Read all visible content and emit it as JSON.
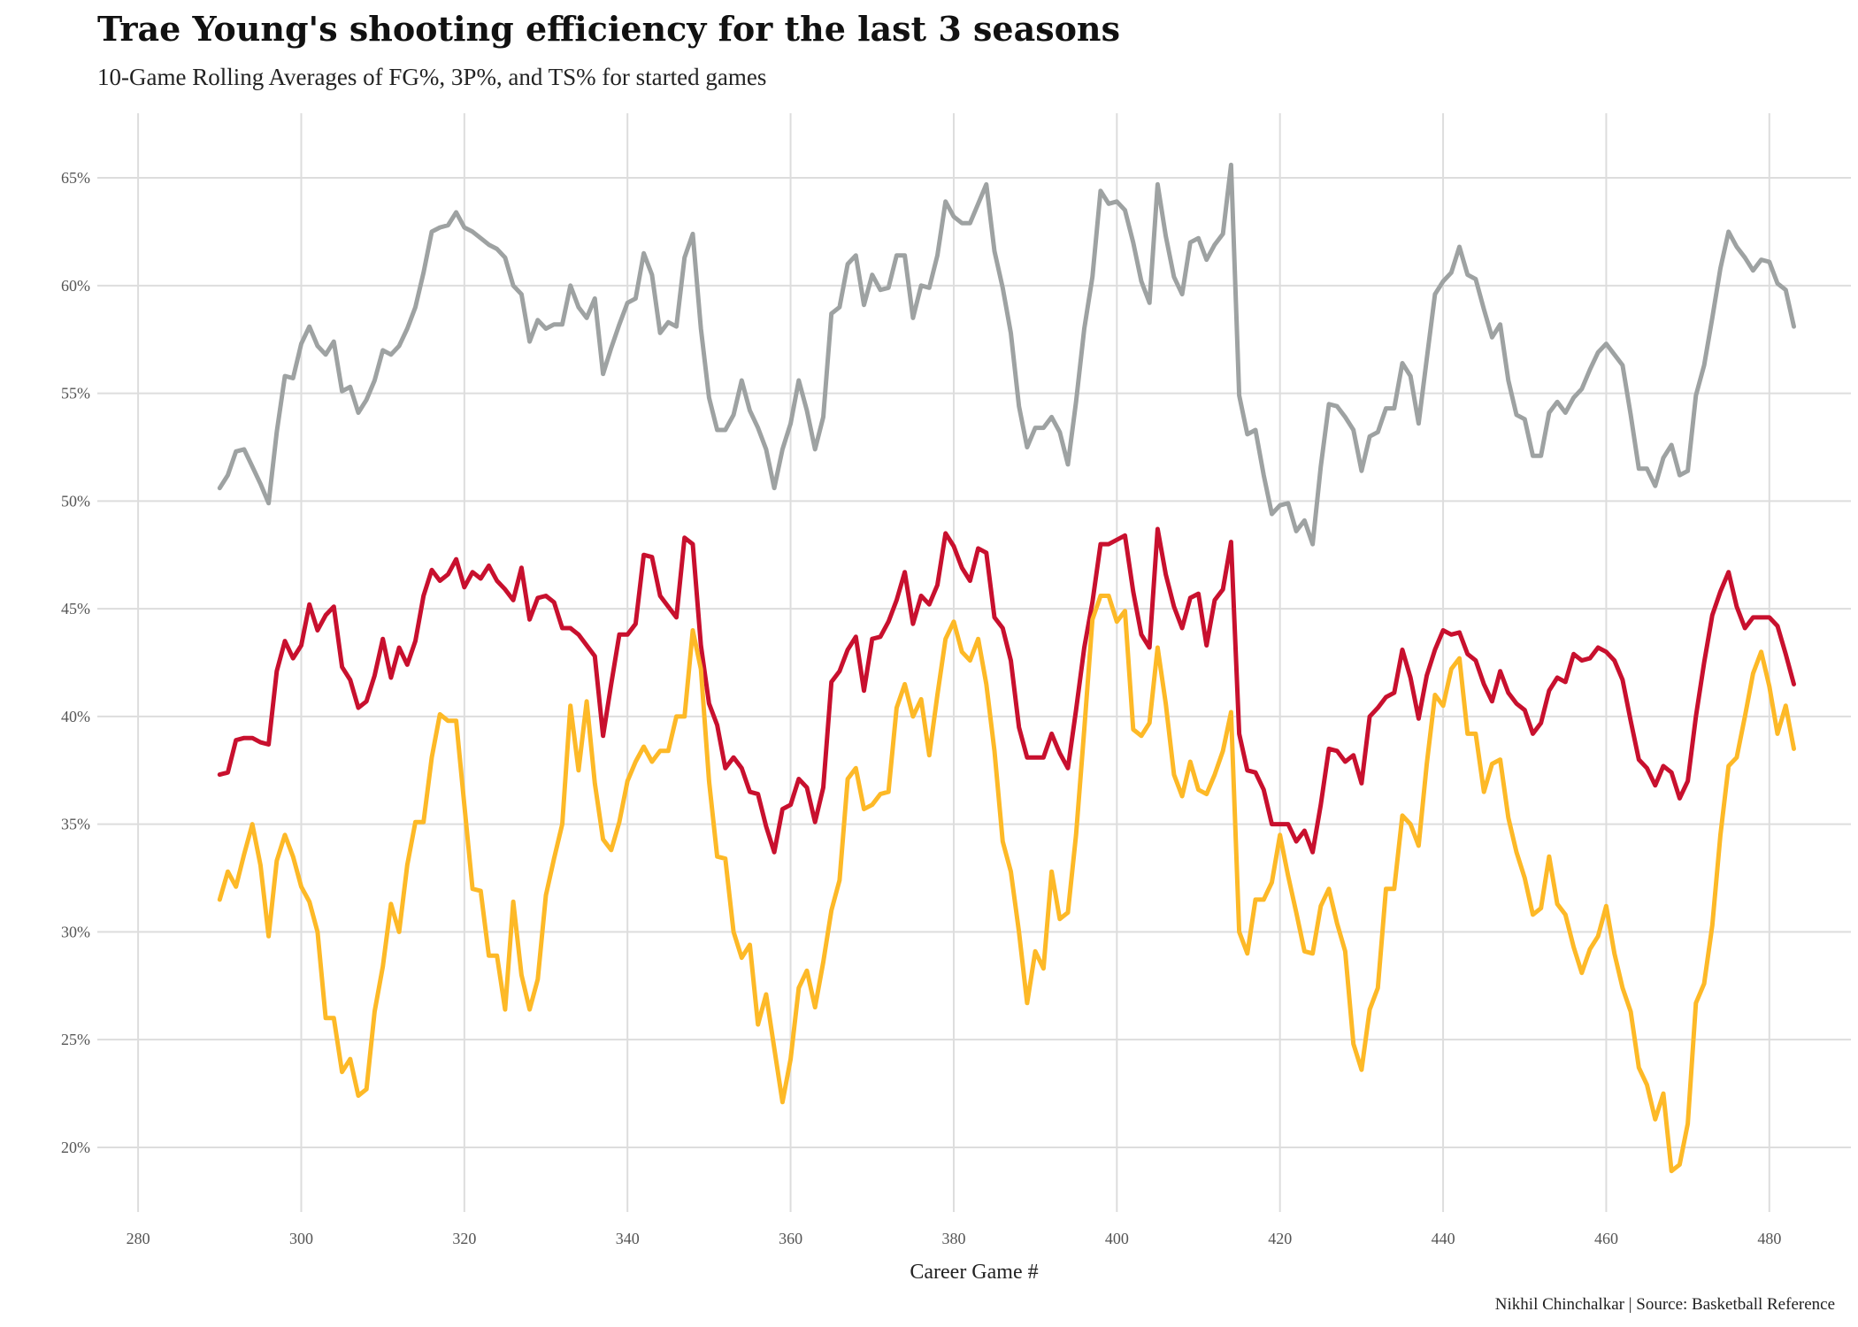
{
  "chart_data": {
    "type": "line",
    "title": "Trae Young's shooting efficiency for the last 3 seasons",
    "subtitle": "10-Game Rolling Averages of FG%, 3P%, and TS% for started games",
    "caption": "Nikhil Chinchalkar | Source: Basketball Reference",
    "xlabel": "Career Game #",
    "ylabel": "",
    "xlim": [
      275,
      490
    ],
    "ylim": [
      17,
      68
    ],
    "x_ticks": [
      280,
      300,
      320,
      340,
      360,
      380,
      400,
      420,
      440,
      460,
      480
    ],
    "x_tick_labels": [
      "280",
      "300",
      "320",
      "340",
      "360",
      "380",
      "400",
      "420",
      "440",
      "460",
      "480"
    ],
    "y_ticks": [
      20,
      25,
      30,
      35,
      40,
      45,
      50,
      55,
      60,
      65
    ],
    "y_tick_labels": [
      "20%",
      "25%",
      "30%",
      "35%",
      "40%",
      "45%",
      "50%",
      "55%",
      "60%",
      "65%"
    ],
    "grid": true,
    "legend": "none",
    "x_start": 290,
    "series": [
      {
        "color": "#9ea2a2",
        "values": [
          50.6,
          51.2,
          52.3,
          52.4,
          51.6,
          50.8,
          49.9,
          53.2,
          55.8,
          55.7,
          57.3,
          58.1,
          57.2,
          56.8,
          57.4,
          55.1,
          55.3,
          54.1,
          54.7,
          55.6,
          57.0,
          56.8,
          57.2,
          58.0,
          59.0,
          60.6,
          62.5,
          62.7,
          62.8,
          63.4,
          62.7,
          62.5,
          62.2,
          61.9,
          61.7,
          61.3,
          60.0,
          59.6,
          57.4,
          58.4,
          58.0,
          58.2,
          58.2,
          60.0,
          59.0,
          58.5,
          59.4,
          55.9,
          57.1,
          58.2,
          59.2,
          59.4,
          61.5,
          60.5,
          57.8,
          58.3,
          58.1,
          61.3,
          62.4,
          58.0,
          54.8,
          53.3,
          53.3,
          54.0,
          55.6,
          54.2,
          53.4,
          52.4,
          50.6,
          52.4,
          53.6,
          55.6,
          54.2,
          52.4,
          53.9,
          58.7,
          59.0,
          61.0,
          61.4,
          59.1,
          60.5,
          59.8,
          59.9,
          61.4,
          61.4,
          58.5,
          60.0,
          59.9,
          61.4,
          63.9,
          63.2,
          62.9,
          62.9,
          63.8,
          64.7,
          61.6,
          59.9,
          57.8,
          54.4,
          52.5,
          53.4,
          53.4,
          53.9,
          53.2,
          51.7,
          54.6,
          58.0,
          60.4,
          64.4,
          63.8,
          63.9,
          63.5,
          62.0,
          60.2,
          59.2,
          64.7,
          62.3,
          60.4,
          59.6,
          62.0,
          62.2,
          61.2,
          61.9,
          62.4,
          65.6,
          54.9,
          53.1,
          53.3,
          51.2,
          49.4,
          49.8,
          49.9,
          48.6,
          49.1,
          48.0,
          51.6,
          54.5,
          54.4,
          53.9,
          53.3,
          51.4,
          53.0,
          53.2,
          54.3,
          54.3,
          56.4,
          55.8,
          53.6,
          56.6,
          59.6,
          60.2,
          60.6,
          61.8,
          60.5,
          60.3,
          58.9,
          57.6,
          58.2,
          55.6,
          54.0,
          53.8,
          52.1,
          52.1,
          54.1,
          54.6,
          54.1,
          54.8,
          55.2,
          56.1,
          56.9,
          57.3,
          56.8,
          56.3,
          54.0,
          51.5,
          51.5,
          50.7,
          52.0,
          52.6,
          51.2,
          51.4,
          54.9,
          56.3,
          58.5,
          60.8,
          62.5,
          61.8,
          61.3,
          60.7,
          61.2,
          61.1,
          60.1,
          59.8,
          58.1
        ]
      },
      {
        "color": "#c8102e",
        "values": [
          37.3,
          37.4,
          38.9,
          39.0,
          39.0,
          38.8,
          38.7,
          42.1,
          43.5,
          42.7,
          43.3,
          45.2,
          44.0,
          44.7,
          45.1,
          42.3,
          41.7,
          40.4,
          40.7,
          41.9,
          43.6,
          41.8,
          43.2,
          42.4,
          43.5,
          45.6,
          46.8,
          46.3,
          46.6,
          47.3,
          46.0,
          46.7,
          46.4,
          47.0,
          46.3,
          45.9,
          45.4,
          46.9,
          44.5,
          45.5,
          45.6,
          45.3,
          44.1,
          44.1,
          43.8,
          43.3,
          42.8,
          39.1,
          41.5,
          43.8,
          43.8,
          44.3,
          47.5,
          47.4,
          45.6,
          45.1,
          44.6,
          48.3,
          48.0,
          43.3,
          40.6,
          39.6,
          37.6,
          38.1,
          37.6,
          36.5,
          36.4,
          34.9,
          33.7,
          35.7,
          35.9,
          37.1,
          36.7,
          35.1,
          36.7,
          41.6,
          42.1,
          43.1,
          43.7,
          41.2,
          43.6,
          43.7,
          44.4,
          45.4,
          46.7,
          44.3,
          45.6,
          45.2,
          46.1,
          48.5,
          47.9,
          46.9,
          46.3,
          47.8,
          47.6,
          44.6,
          44.1,
          42.6,
          39.5,
          38.1,
          38.1,
          38.1,
          39.2,
          38.3,
          37.6,
          40.3,
          43.2,
          45.3,
          48.0,
          48.0,
          48.2,
          48.4,
          45.8,
          43.8,
          43.2,
          48.7,
          46.6,
          45.1,
          44.1,
          45.5,
          45.7,
          43.3,
          45.4,
          45.9,
          48.1,
          39.2,
          37.5,
          37.4,
          36.6,
          35.0,
          35.0,
          35.0,
          34.2,
          34.7,
          33.7,
          35.9,
          38.5,
          38.4,
          37.9,
          38.2,
          36.9,
          40.0,
          40.4,
          40.9,
          41.1,
          43.1,
          41.8,
          39.9,
          41.9,
          43.1,
          44.0,
          43.8,
          43.9,
          42.9,
          42.6,
          41.5,
          40.7,
          42.1,
          41.1,
          40.6,
          40.3,
          39.2,
          39.7,
          41.2,
          41.8,
          41.6,
          42.9,
          42.6,
          42.7,
          43.2,
          43.0,
          42.6,
          41.7,
          39.8,
          38.0,
          37.6,
          36.8,
          37.7,
          37.4,
          36.2,
          37.0,
          40.0,
          42.5,
          44.7,
          45.8,
          46.7,
          45.1,
          44.1,
          44.6,
          44.6,
          44.6,
          44.2,
          42.9,
          41.5
        ]
      },
      {
        "color": "#fdb927",
        "values": [
          31.5,
          32.8,
          32.1,
          33.6,
          35.0,
          33.1,
          29.8,
          33.3,
          34.5,
          33.5,
          32.1,
          31.4,
          30.0,
          26.0,
          26.0,
          23.5,
          24.1,
          22.4,
          22.7,
          26.3,
          28.4,
          31.3,
          30.0,
          33.1,
          35.1,
          35.1,
          38.1,
          40.1,
          39.8,
          39.8,
          35.9,
          32.0,
          31.9,
          28.9,
          28.9,
          26.4,
          31.4,
          28.0,
          26.4,
          27.8,
          31.7,
          33.4,
          35.0,
          40.5,
          37.5,
          40.7,
          36.9,
          34.3,
          33.8,
          35.1,
          37.0,
          37.9,
          38.6,
          37.9,
          38.4,
          38.4,
          40.0,
          40.0,
          44.0,
          42.2,
          37.0,
          33.5,
          33.4,
          30.0,
          28.8,
          29.4,
          25.7,
          27.1,
          24.6,
          22.1,
          24.1,
          27.4,
          28.2,
          26.5,
          28.6,
          31.0,
          32.4,
          37.1,
          37.6,
          35.7,
          35.9,
          36.4,
          36.5,
          40.4,
          41.5,
          40.0,
          40.8,
          38.2,
          41.0,
          43.6,
          44.4,
          43.0,
          42.6,
          43.6,
          41.5,
          38.4,
          34.2,
          32.8,
          30.0,
          26.7,
          29.1,
          28.3,
          32.8,
          30.6,
          30.9,
          34.5,
          39.4,
          44.5,
          45.6,
          45.6,
          44.4,
          44.9,
          39.4,
          39.1,
          39.7,
          43.2,
          40.6,
          37.3,
          36.3,
          37.9,
          36.6,
          36.4,
          37.3,
          38.4,
          40.2,
          30.0,
          29.0,
          31.5,
          31.5,
          32.3,
          34.5,
          32.6,
          30.9,
          29.1,
          29.0,
          31.2,
          32.0,
          30.4,
          29.1,
          24.8,
          23.6,
          26.4,
          27.4,
          32.0,
          32.0,
          35.4,
          35.0,
          34.0,
          37.8,
          41.0,
          40.5,
          42.2,
          42.7,
          39.2,
          39.2,
          36.5,
          37.8,
          38.0,
          35.3,
          33.7,
          32.5,
          30.8,
          31.1,
          33.5,
          31.3,
          30.8,
          29.3,
          28.1,
          29.2,
          29.8,
          31.2,
          29.0,
          27.4,
          26.3,
          23.7,
          22.9,
          21.3,
          22.5,
          18.9,
          19.2,
          21.1,
          26.7,
          27.6,
          30.3,
          34.5,
          37.7,
          38.1,
          40.0,
          42.0,
          43.0,
          41.4,
          39.2,
          40.5,
          38.5
        ]
      }
    ]
  }
}
